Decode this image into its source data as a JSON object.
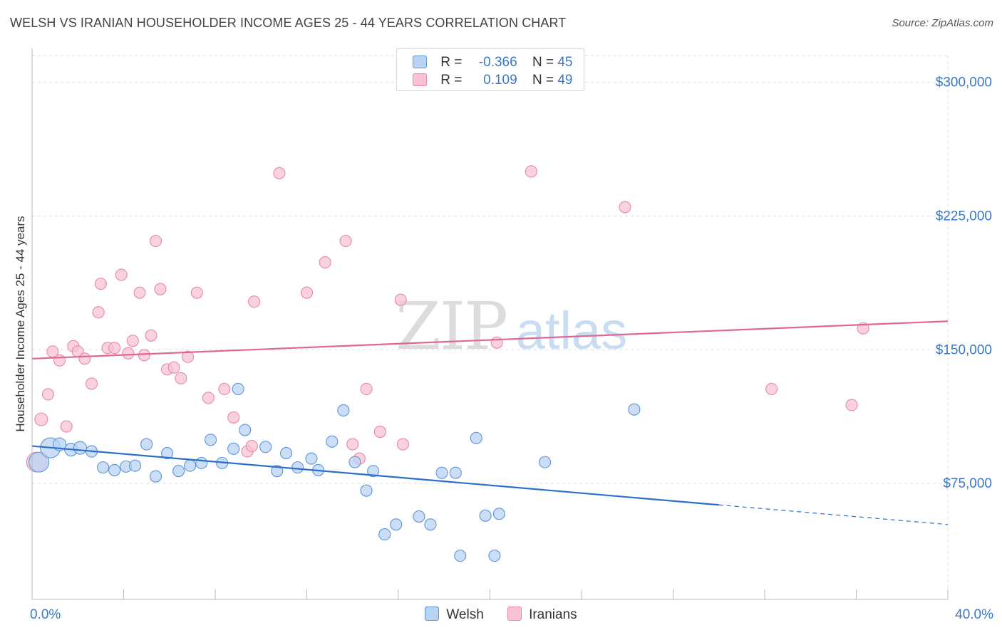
{
  "title": "WELSH VS IRANIAN HOUSEHOLDER INCOME AGES 25 - 44 YEARS CORRELATION CHART",
  "source": "Source: ZipAtlas.com",
  "watermark": {
    "zip": "ZIP",
    "atlas": "atlas"
  },
  "legend_top": [
    {
      "r_label": "R =",
      "r_value": "-0.366",
      "n_label": "N =",
      "n_value": "45"
    },
    {
      "r_label": "R =",
      "r_value": "0.109",
      "n_label": "N =",
      "n_value": "49"
    }
  ],
  "colors": {
    "welsh_fill": "#b9d3f3",
    "welsh_stroke": "#5d95d6",
    "welsh_line": "#2a6fcc",
    "iranians_fill": "#f7c3d3",
    "iranians_stroke": "#e48aa8",
    "iranians_line": "#e06890",
    "tick_label": "#3a78c8"
  },
  "chart_data": {
    "type": "scatter",
    "title": "WELSH VS IRANIAN HOUSEHOLDER INCOME AGES 25 - 44 YEARS CORRELATION CHART",
    "xlabel": "",
    "ylabel": "Householder Income Ages 25 - 44 years",
    "xlim": [
      0,
      40
    ],
    "ylim": [
      10000,
      315000
    ],
    "x_tick_labels": [
      "0.0%",
      "40.0%"
    ],
    "y_ticks": [
      75000,
      150000,
      225000,
      300000
    ],
    "y_tick_labels": [
      "$75,000",
      "$150,000",
      "$225,000",
      "$300,000"
    ],
    "grid": true,
    "legend_placement": "top-center and bottom",
    "series": [
      {
        "name": "Welsh",
        "r": -0.366,
        "n": 45,
        "trend": {
          "x": [
            0,
            30,
            40
          ],
          "y": [
            96000,
            63000,
            52000
          ],
          "solid_until": 30
        },
        "points": [
          [
            0.3,
            87000,
            14
          ],
          [
            0.8,
            95000,
            14
          ],
          [
            1.2,
            97000,
            9
          ],
          [
            1.7,
            94000,
            9
          ],
          [
            2.1,
            95000,
            9
          ],
          [
            2.6,
            93000,
            8
          ],
          [
            3.1,
            84000,
            8
          ],
          [
            3.6,
            82500,
            8
          ],
          [
            4.1,
            84500,
            8
          ],
          [
            4.5,
            85000,
            8
          ],
          [
            5.0,
            97000,
            8
          ],
          [
            5.4,
            79000,
            8
          ],
          [
            5.9,
            92000,
            8
          ],
          [
            6.4,
            82000,
            8
          ],
          [
            6.9,
            85000,
            8
          ],
          [
            7.4,
            86500,
            8
          ],
          [
            7.8,
            99500,
            8
          ],
          [
            8.3,
            86500,
            8
          ],
          [
            8.8,
            94500,
            8
          ],
          [
            9.3,
            105000,
            8
          ],
          [
            9.0,
            128000,
            8
          ],
          [
            10.2,
            95500,
            8
          ],
          [
            10.7,
            82000,
            8
          ],
          [
            11.1,
            92000,
            8
          ],
          [
            11.6,
            84000,
            8
          ],
          [
            12.2,
            89000,
            8
          ],
          [
            12.5,
            82500,
            8
          ],
          [
            13.1,
            98500,
            8
          ],
          [
            13.6,
            116000,
            8
          ],
          [
            14.1,
            87000,
            8
          ],
          [
            14.6,
            71000,
            8
          ],
          [
            14.9,
            82000,
            8
          ],
          [
            15.4,
            46500,
            8
          ],
          [
            15.9,
            52000,
            8
          ],
          [
            16.9,
            56500,
            8
          ],
          [
            17.4,
            52000,
            8
          ],
          [
            17.9,
            81000,
            8
          ],
          [
            18.5,
            81000,
            8
          ],
          [
            18.7,
            34500,
            8
          ],
          [
            19.4,
            100500,
            8
          ],
          [
            19.8,
            57000,
            8
          ],
          [
            20.2,
            34500,
            8
          ],
          [
            20.4,
            58000,
            8
          ],
          [
            22.4,
            87000,
            8
          ],
          [
            26.3,
            116500,
            8
          ]
        ]
      },
      {
        "name": "Iranians",
        "r": 0.109,
        "n": 49,
        "trend": {
          "x": [
            0,
            40
          ],
          "y": [
            145000,
            166000
          ],
          "solid_until": 40
        },
        "points": [
          [
            0.2,
            87000,
            14
          ],
          [
            0.4,
            111000,
            9
          ],
          [
            0.7,
            125000,
            8
          ],
          [
            0.9,
            149000,
            8
          ],
          [
            1.2,
            144000,
            8
          ],
          [
            1.5,
            107000,
            8
          ],
          [
            1.8,
            152000,
            8
          ],
          [
            2.0,
            149000,
            8
          ],
          [
            2.3,
            145000,
            8
          ],
          [
            2.6,
            131000,
            8
          ],
          [
            2.9,
            171000,
            8
          ],
          [
            3.0,
            187000,
            8
          ],
          [
            3.3,
            151000,
            8
          ],
          [
            3.6,
            151000,
            8
          ],
          [
            3.9,
            192000,
            8
          ],
          [
            4.2,
            148000,
            8
          ],
          [
            4.4,
            155000,
            8
          ],
          [
            4.7,
            182000,
            8
          ],
          [
            4.9,
            147000,
            8
          ],
          [
            5.2,
            158000,
            8
          ],
          [
            5.4,
            211000,
            8
          ],
          [
            5.6,
            184000,
            8
          ],
          [
            5.9,
            139000,
            8
          ],
          [
            6.2,
            140000,
            8
          ],
          [
            6.5,
            134000,
            8
          ],
          [
            6.8,
            146000,
            8
          ],
          [
            7.2,
            182000,
            8
          ],
          [
            7.7,
            123000,
            8
          ],
          [
            8.4,
            128000,
            8
          ],
          [
            8.8,
            112000,
            8
          ],
          [
            9.4,
            93000,
            8
          ],
          [
            9.6,
            96000,
            8
          ],
          [
            9.7,
            177000,
            8
          ],
          [
            10.8,
            249000,
            8
          ],
          [
            12.0,
            182000,
            8
          ],
          [
            12.8,
            199000,
            8
          ],
          [
            13.7,
            211000,
            8
          ],
          [
            14.0,
            97000,
            8
          ],
          [
            14.3,
            89000,
            8
          ],
          [
            14.6,
            128000,
            8
          ],
          [
            15.2,
            104000,
            8
          ],
          [
            16.1,
            178000,
            8
          ],
          [
            16.2,
            97000,
            8
          ],
          [
            20.3,
            154000,
            8
          ],
          [
            21.8,
            250000,
            8
          ],
          [
            25.9,
            230000,
            8
          ],
          [
            32.3,
            128000,
            8
          ],
          [
            35.8,
            119000,
            8
          ],
          [
            36.3,
            162000,
            8
          ]
        ]
      }
    ]
  }
}
